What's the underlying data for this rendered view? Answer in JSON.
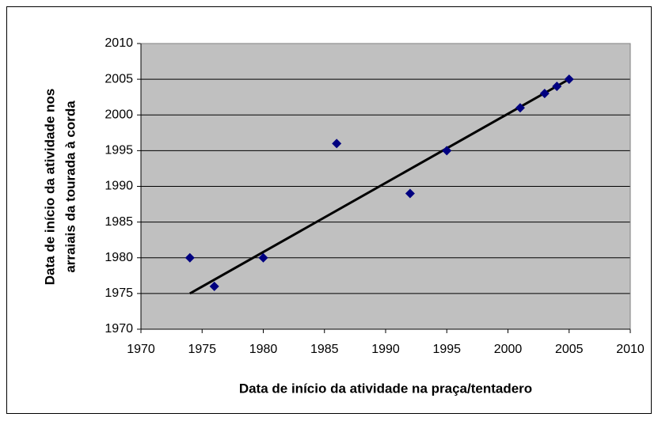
{
  "chart_data": {
    "type": "scatter",
    "xlabel": "Data de início da atividade na praça/tentadero",
    "ylabel": [
      "Data de início da atividade nos",
      "arraiais da tourada à corda"
    ],
    "x": [
      1974,
      1976,
      1980,
      1986,
      1992,
      1995,
      2001,
      2003,
      2004,
      2005
    ],
    "series": [
      {
        "color": "#000080",
        "values": [
          1980,
          1976,
          1980,
          1996,
          1989,
          1995,
          2001,
          2003,
          2004,
          2005
        ]
      }
    ],
    "trendline": {
      "x": [
        1974,
        2005
      ],
      "y": [
        1975,
        2005
      ],
      "color": "#000000"
    },
    "xlim": [
      1970,
      2010
    ],
    "xticks": [
      1970,
      1975,
      1980,
      1985,
      1990,
      1995,
      2000,
      2005,
      2010
    ],
    "ylim": [
      1970,
      2010
    ],
    "yticks": [
      1970,
      1975,
      1980,
      1985,
      1990,
      1995,
      2000,
      2005,
      2010
    ],
    "grid": true,
    "plot_background": "#c0c0c0"
  }
}
